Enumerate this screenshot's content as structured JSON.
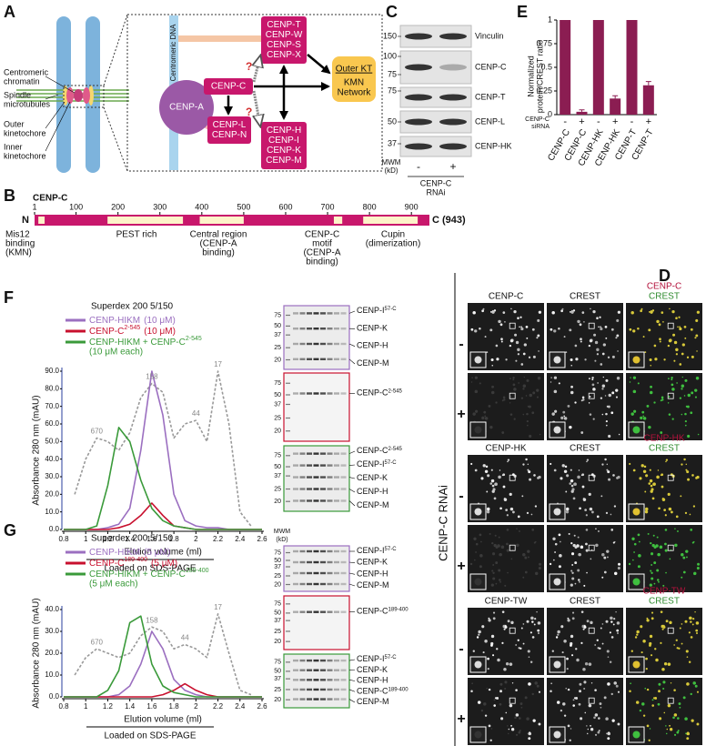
{
  "panel_labels": [
    "A",
    "B",
    "C",
    "D",
    "E",
    "F",
    "G"
  ],
  "panel_a": {
    "chromosome_labels": [
      [
        "Centromeric",
        "chromatin"
      ],
      [
        "Spindle",
        "microtubules"
      ],
      [
        "Outer",
        "kinetochore"
      ],
      [
        "Inner",
        "kinetochore"
      ]
    ],
    "dna_label": "Centromeric DNA",
    "cenp_a": "CENP-A",
    "cenp_c": "CENP-C",
    "cenp_ln": [
      "CENP-L",
      "CENP-N"
    ],
    "cenp_twsx": [
      "CENP-T",
      "CENP-W",
      "CENP-S",
      "CENP-X"
    ],
    "cenp_hikm": [
      "CENP-H",
      "CENP-I",
      "CENP-K",
      "CENP-M"
    ],
    "outer_kt": "Outer KT",
    "kmn": [
      "KMN",
      "Network"
    ],
    "question": "?"
  },
  "panel_b": {
    "title": "CENP-C",
    "ticks": [
      1,
      100,
      200,
      300,
      400,
      500,
      600,
      700,
      800,
      900
    ],
    "length": 943,
    "n_label": "N",
    "c_label": "C (943)",
    "light_regions": [
      [
        10,
        25
      ],
      [
        175,
        355
      ],
      [
        395,
        500
      ],
      [
        715,
        735
      ],
      [
        785,
        915
      ]
    ],
    "domains": [
      [
        "Mis12",
        "binding",
        "(KMN)"
      ],
      [
        "PEST rich"
      ],
      [
        "Central region",
        "(CENP-A",
        "binding)"
      ],
      [
        "CENP-C",
        "motif",
        "(CENP-A",
        "binding)"
      ],
      [
        "Cupin",
        "(dimerization)"
      ]
    ]
  },
  "panel_c": {
    "blots": [
      {
        "protein": "Vinculin",
        "mw": [
          150
        ]
      },
      {
        "protein": "CENP-C",
        "mw": [
          100,
          75
        ]
      },
      {
        "protein": "CENP-T",
        "mw": [
          75
        ]
      },
      {
        "protein": "CENP-L",
        "mw": [
          50
        ]
      },
      {
        "protein": "CENP-HK",
        "mw": [
          37
        ]
      }
    ],
    "mw_title": [
      "MWM",
      "(kD)"
    ],
    "lanes": [
      "-",
      "+"
    ],
    "treatment": [
      "CENP-C",
      "RNAi"
    ]
  },
  "panel_d": {
    "side_label": "CENP-C RNAi",
    "groups": [
      {
        "channels": [
          "CENP-C",
          "CREST"
        ],
        "merge": [
          "CENP-C",
          "CREST"
        ],
        "conditions": [
          "-",
          "+"
        ]
      },
      {
        "channels": [
          "CENP-HK",
          "CREST"
        ],
        "merge": [
          "CENP-HK",
          "CREST"
        ],
        "conditions": [
          "-",
          "+"
        ]
      },
      {
        "channels": [
          "CENP-TW",
          "CREST"
        ],
        "merge": [
          "CENP-TW",
          "CREST"
        ],
        "conditions": [
          "-",
          "+"
        ]
      }
    ]
  },
  "panel_e": {
    "type": "bar",
    "ylabel": [
      "Normalized",
      "protein/CREST ratio"
    ],
    "categories": [
      "CENP-C",
      "CENP-C",
      "CENP-HK",
      "CENP-HK",
      "CENP-T",
      "CENP-T"
    ],
    "sirna": [
      "-",
      "+",
      "-",
      "+",
      "-",
      "+"
    ],
    "sirna_label": [
      "CENP-C",
      "siRNA"
    ],
    "values": [
      1,
      0.03,
      1,
      0.17,
      1,
      0.31
    ],
    "errors": [
      0,
      0.02,
      0,
      0.03,
      0,
      0.04
    ],
    "color": "#8b1d52",
    "ylim": [
      0,
      1
    ],
    "yticks": [
      0,
      0.25,
      0.5,
      0.75,
      1
    ]
  },
  "panel_f": {
    "type": "line",
    "column": "Superdex 200 5/150",
    "ylabel": "Absorbance 280 nm (mAU)",
    "xlabel": "Elution volume (ml)",
    "loaded": "Loaded on SDS-PAGE",
    "x": [
      0.8,
      0.9,
      1,
      1.1,
      1.2,
      1.3,
      1.4,
      1.5,
      1.6,
      1.7,
      1.8,
      1.9,
      2,
      2.1,
      2.2,
      2.3,
      2.4,
      2.5,
      2.6
    ],
    "xlim": [
      0.8,
      2.6
    ],
    "xticks": [
      0.8,
      1,
      1.2,
      1.4,
      1.6,
      1.8,
      2,
      2.2,
      2.4,
      2.6
    ],
    "ylim": [
      0,
      90
    ],
    "yticks": [
      {
        "value": 0,
        "label": "0.0"
      },
      {
        "value": 10,
        "label": "10.0"
      },
      {
        "value": 20,
        "label": "20.0"
      },
      {
        "value": 30,
        "label": "30.0"
      },
      {
        "value": 40,
        "label": "40.0"
      },
      {
        "value": 50,
        "label": "50.0"
      },
      {
        "value": 60,
        "label": "60.0"
      },
      {
        "value": 70,
        "label": "70.0"
      },
      {
        "value": 80,
        "label": "80.0"
      },
      {
        "value": 90,
        "label": "90.0"
      }
    ],
    "series": [
      {
        "name": "CENP-HIKM",
        "note": "(10 μM)",
        "color": "#9b6fc0",
        "values": [
          0,
          0,
          0,
          0,
          1,
          3,
          12,
          45,
          90,
          65,
          20,
          5,
          2,
          1,
          1,
          0,
          0,
          0,
          0
        ]
      },
      {
        "name": "CENP-C",
        "sup": "2-545",
        "note": "(10 μM)",
        "color": "#c8102e",
        "values": [
          0,
          0,
          0,
          0,
          0,
          1,
          3,
          8,
          15,
          8,
          2,
          1,
          0,
          0,
          0,
          0,
          0,
          0,
          0
        ]
      },
      {
        "name": "CENP-HIKM + CENP-C",
        "sup": "2-545",
        "note": "(10 μM each)",
        "color": "#3a9a3a",
        "values": [
          0,
          0,
          0,
          2,
          25,
          58,
          50,
          28,
          12,
          5,
          2,
          1,
          0,
          0,
          0,
          0,
          0,
          0,
          0
        ]
      }
    ],
    "standard": {
      "color": "#999999",
      "values": [
        null,
        20,
        40,
        52,
        50,
        45,
        55,
        75,
        83,
        78,
        52,
        60,
        62,
        50,
        90,
        60,
        10,
        2,
        null
      ]
    },
    "standard_labels": [
      {
        "label": "670",
        "x": 1.1
      },
      {
        "label": "158",
        "x": 1.6
      },
      {
        "label": "44",
        "x": 2
      },
      {
        "label": "17",
        "x": 2.2
      }
    ],
    "gels": [
      {
        "color": "#9b6fc0",
        "mw": [
          75,
          50,
          37,
          25,
          20
        ],
        "bands": [
          {
            "name": "CENP-I",
            "sup": "57-C"
          },
          {
            "name": "CENP-K"
          },
          {
            "name": "CENP-H"
          },
          {
            "name": "CENP-M"
          }
        ]
      },
      {
        "color": "#c8102e",
        "mw": [
          75,
          50,
          37,
          25,
          20
        ],
        "bands": [
          {
            "name": "CENP-C",
            "sup": "2-545"
          }
        ]
      },
      {
        "color": "#3a9a3a",
        "mw": [
          75,
          50,
          37,
          25,
          20
        ],
        "bands": [
          {
            "name": "CENP-C",
            "sup": "2-545"
          },
          {
            "name": "CENP-I",
            "sup": "57-C"
          },
          {
            "name": "CENP-K"
          },
          {
            "name": "CENP-H"
          },
          {
            "name": "CENP-M"
          }
        ]
      }
    ]
  },
  "panel_g": {
    "type": "line",
    "column": "Superdex 200 5/150",
    "ylabel": "Absorbance 280 nm (mAU)",
    "xlabel": "Elution volume (ml)",
    "loaded": "Loaded on SDS-PAGE",
    "x": [
      0.8,
      0.9,
      1,
      1.1,
      1.2,
      1.3,
      1.4,
      1.5,
      1.6,
      1.7,
      1.8,
      1.9,
      2,
      2.1,
      2.2,
      2.3,
      2.4,
      2.5,
      2.6
    ],
    "xlim": [
      0.8,
      2.6
    ],
    "xticks": [
      0.8,
      1,
      1.2,
      1.4,
      1.6,
      1.8,
      2,
      2.2,
      2.4,
      2.6
    ],
    "ylim": [
      0,
      40
    ],
    "yticks": [
      {
        "value": 0,
        "label": "0.0"
      },
      {
        "value": 10,
        "label": "10.0"
      },
      {
        "value": 20,
        "label": "20.0"
      },
      {
        "value": 30,
        "label": "30.0"
      },
      {
        "value": 40,
        "label": "40.0"
      }
    ],
    "series": [
      {
        "name": "CENP-HIKM",
        "note": "(5 μM)",
        "color": "#9b6fc0",
        "values": [
          0,
          0,
          0,
          0,
          0,
          1,
          5,
          15,
          30,
          22,
          8,
          3,
          1,
          0,
          0,
          0,
          0,
          0,
          0
        ]
      },
      {
        "name": "CENP-C",
        "sup": "189-400",
        "note": "(5 μM)",
        "color": "#c8102e",
        "values": [
          0,
          0,
          0,
          0,
          0,
          0,
          0,
          0,
          0,
          1,
          3,
          6,
          3,
          1,
          0,
          0,
          0,
          0,
          0
        ]
      },
      {
        "name": "CENP-HIKM + CENP-C",
        "sup": "189-400",
        "note": "(5 μM each)",
        "color": "#3a9a3a",
        "values": [
          0,
          0,
          0,
          0,
          3,
          12,
          34,
          37,
          15,
          5,
          2,
          1,
          0,
          0,
          0,
          0,
          0,
          0,
          0
        ]
      }
    ],
    "standard": {
      "color": "#999999",
      "values": [
        null,
        10,
        18,
        22,
        20,
        18,
        20,
        28,
        32,
        30,
        22,
        24,
        22,
        18,
        38,
        20,
        3,
        1,
        null
      ]
    },
    "standard_labels": [
      {
        "label": "670",
        "x": 1.1
      },
      {
        "label": "158",
        "x": 1.6
      },
      {
        "label": "44",
        "x": 1.9
      },
      {
        "label": "17",
        "x": 2.2
      }
    ],
    "mw_title": [
      "MWM",
      "(kD)"
    ],
    "gels": [
      {
        "color": "#9b6fc0",
        "mw": [
          75,
          50,
          37,
          25,
          20
        ],
        "bands": [
          {
            "name": "CENP-I",
            "sup": "57-C"
          },
          {
            "name": "CENP-K"
          },
          {
            "name": "CENP-H"
          },
          {
            "name": "CENP-M"
          }
        ]
      },
      {
        "color": "#c8102e",
        "mw": [
          75,
          50,
          37,
          25,
          20
        ],
        "bands": [
          {
            "name": "CENP-C",
            "sup": "189-400"
          }
        ]
      },
      {
        "color": "#3a9a3a",
        "mw": [
          75,
          50,
          37,
          25,
          20
        ],
        "bands": [
          {
            "name": "CENP-I",
            "sup": "57-C"
          },
          {
            "name": "CENP-K"
          },
          {
            "name": "CENP-H"
          },
          {
            "name": "CENP-C",
            "sup": "189-400"
          },
          {
            "name": "CENP-M"
          }
        ]
      }
    ]
  }
}
